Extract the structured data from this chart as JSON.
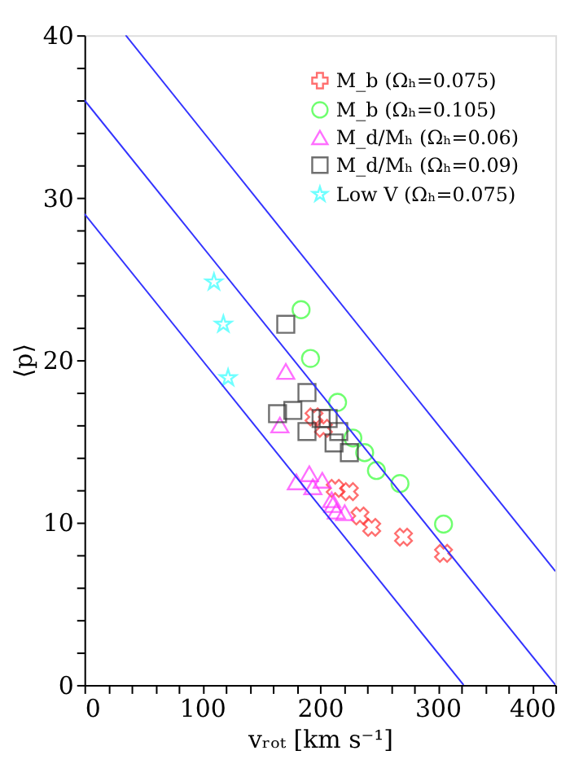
{
  "chart_data": {
    "type": "scatter",
    "xlabel": "vᵣₒₜ [km s⁻¹]",
    "ylabel": "⟨p⟩",
    "xlim": [
      0,
      400
    ],
    "ylim": [
      0,
      40
    ],
    "xticks": [
      0,
      {
        "value": 20,
        "label": null
      },
      {
        "value": 40,
        "label": null
      },
      {
        "value": 60,
        "label": null
      },
      {
        "value": 80,
        "label": null
      },
      100,
      {
        "value": 120,
        "label": null
      },
      {
        "value": 140,
        "label": null
      },
      {
        "value": 160,
        "label": null
      },
      {
        "value": 180,
        "label": null
      },
      200,
      {
        "value": 220,
        "label": null
      },
      {
        "value": 240,
        "label": null
      },
      {
        "value": 260,
        "label": null
      },
      {
        "value": 280,
        "label": null
      },
      300,
      {
        "value": 320,
        "label": null
      },
      {
        "value": 340,
        "label": null
      },
      {
        "value": 360,
        "label": null
      },
      {
        "value": 380,
        "label": null
      },
      400
    ],
    "yticks": [
      0,
      {
        "value": 2,
        "label": null
      },
      {
        "value": 4,
        "label": null
      },
      {
        "value": 6,
        "label": null
      },
      {
        "value": 8,
        "label": null
      },
      10,
      {
        "value": 12,
        "label": null
      },
      {
        "value": 14,
        "label": null
      },
      {
        "value": 16,
        "label": null
      },
      {
        "value": 18,
        "label": null
      },
      20,
      {
        "value": 22,
        "label": null
      },
      {
        "value": 24,
        "label": null
      },
      {
        "value": 26,
        "label": null
      },
      {
        "value": 28,
        "label": null
      },
      30,
      {
        "value": 32,
        "label": null
      },
      {
        "value": 34,
        "label": null
      },
      {
        "value": 36,
        "label": null
      },
      {
        "value": 38,
        "label": null
      },
      40
    ],
    "grid": false,
    "legend": "top right",
    "series": [
      {
        "name": "M_b (Ωₕ=0.075)",
        "color": "#ff3333",
        "marker": "cross",
        "x": [
          195,
          203,
          213,
          225,
          234,
          244,
          271,
          305
        ],
        "values": [
          16.5,
          15.8,
          12.1,
          11.9,
          10.4,
          9.7,
          9.1,
          8.1
        ]
      },
      {
        "name": "M_b (Ωₕ=0.105)",
        "color": "#33ff33",
        "marker": "circle",
        "x": [
          184,
          192,
          215,
          228,
          238,
          248,
          268,
          305
        ],
        "values": [
          23.1,
          20.1,
          17.4,
          15.2,
          14.3,
          13.2,
          12.4,
          9.9
        ]
      },
      {
        "name": "M_d/Mₕ (Ωₕ=0.06)",
        "color": "#ff33ff",
        "marker": "triangle",
        "x": [
          171,
          166,
          180,
          191,
          194,
          202,
          210,
          211,
          214,
          221
        ],
        "values": [
          19.3,
          16.0,
          12.5,
          13.0,
          12.2,
          12.6,
          11.4,
          11.1,
          10.7,
          10.6
        ]
      },
      {
        "name": "M_d/Mₕ (Ωₕ=0.09)",
        "color": "#333333",
        "marker": "square",
        "x": [
          171,
          189,
          164,
          177,
          189,
          201,
          207,
          216,
          212,
          225
        ],
        "values": [
          22.2,
          18.0,
          16.7,
          16.9,
          15.6,
          16.4,
          16.4,
          15.6,
          14.9,
          14.3
        ]
      },
      {
        "name": "Low V (Ωₕ=0.075)",
        "color": "#33ffff",
        "marker": "star",
        "x": [
          110,
          118,
          122
        ],
        "values": [
          24.8,
          22.2,
          18.9
        ]
      },
      {
        "type": "line",
        "color": "#3333ff",
        "x": [
          0,
          322
        ],
        "values": [
          29,
          0
        ]
      },
      {
        "type": "line",
        "color": "#3333ff",
        "x": [
          0,
          400
        ],
        "values": [
          36,
          0
        ]
      },
      {
        "type": "line",
        "color": "#3333ff",
        "x": [
          35,
          400
        ],
        "values": [
          40,
          7
        ]
      }
    ]
  }
}
